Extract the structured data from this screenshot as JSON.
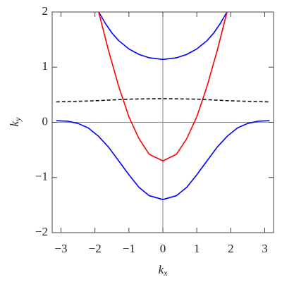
{
  "chart_data": {
    "type": "line",
    "x_label": {
      "main": "k",
      "sub": "x"
    },
    "y_label": {
      "main": "k",
      "sub": "y"
    },
    "xlim": [
      -3.26,
      3.26
    ],
    "ylim": [
      -2,
      2
    ],
    "xticks": [
      {
        "value": -3,
        "label": "−3"
      },
      {
        "value": -2,
        "label": "−2"
      },
      {
        "value": -1,
        "label": "−1"
      },
      0,
      1,
      2,
      3
    ],
    "yticks": [
      {
        "value": -2,
        "label": "−2"
      },
      {
        "value": -1,
        "label": "−1"
      },
      0,
      1,
      2
    ],
    "series": [
      {
        "color": "#0000ff",
        "dashed": false,
        "x": [
          -1.89,
          -1.7,
          -1.5,
          -1.3,
          -1.0,
          -0.7,
          -0.4,
          0,
          0.4,
          0.7,
          1.0,
          1.3,
          1.5,
          1.7,
          1.89
        ],
        "values": [
          2.0,
          1.8,
          1.62,
          1.48,
          1.33,
          1.23,
          1.17,
          1.14,
          1.17,
          1.23,
          1.33,
          1.48,
          1.62,
          1.8,
          2.0
        ]
      },
      {
        "color": "#ff0000",
        "dashed": false,
        "x": [
          -1.89,
          -1.6,
          -1.3,
          -1.0,
          -0.7,
          -0.4,
          0,
          0.4,
          0.7,
          1.0,
          1.3,
          1.6,
          1.89
        ],
        "values": [
          2.0,
          1.3,
          0.65,
          0.1,
          -0.3,
          -0.58,
          -0.7,
          -0.58,
          -0.3,
          0.1,
          0.65,
          1.3,
          2.0
        ]
      },
      {
        "color": "#0000ff",
        "dashed": false,
        "x": [
          -3.14,
          -2.8,
          -2.5,
          -2.2,
          -1.9,
          -1.6,
          -1.3,
          -1.0,
          -0.7,
          -0.4,
          0,
          0.4,
          0.7,
          1.0,
          1.3,
          1.6,
          1.9,
          2.2,
          2.5,
          2.8,
          3.14
        ],
        "values": [
          0.03,
          0.02,
          -0.02,
          -0.1,
          -0.25,
          -0.45,
          -0.7,
          -0.95,
          -1.18,
          -1.33,
          -1.4,
          -1.33,
          -1.18,
          -0.95,
          -0.7,
          -0.45,
          -0.25,
          -0.1,
          -0.02,
          0.02,
          0.03
        ]
      },
      {
        "color": "#000000",
        "dashed": true,
        "x": [
          -3.14,
          -2.0,
          -1.0,
          0,
          1.0,
          2.0,
          3.14
        ],
        "values": [
          0.37,
          0.39,
          0.42,
          0.43,
          0.42,
          0.39,
          0.37
        ]
      }
    ]
  }
}
